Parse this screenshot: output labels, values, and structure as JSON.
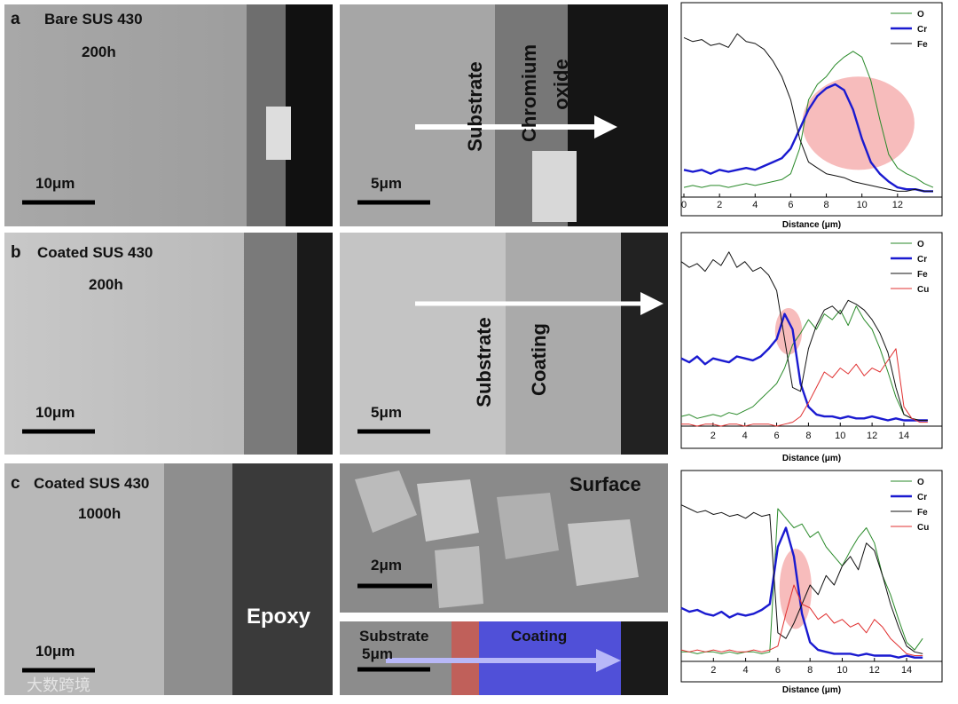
{
  "figure": [
    {
      "letter": "a",
      "sample": "Bare SUS 430",
      "time": "200h",
      "scale_bars": [
        "10μm",
        "5μm"
      ],
      "labels": [
        "Substrate",
        "Chromium",
        "oxide"
      ]
    },
    {
      "letter": "b",
      "sample": "Coated SUS 430",
      "time": "200h",
      "scale_bars": [
        "10μm",
        "5μm"
      ],
      "labels": [
        "Substrate",
        "Coating"
      ]
    },
    {
      "letter": "c",
      "sample": "Coated SUS 430",
      "time": "1000h",
      "scale_bars": [
        "10μm",
        "2μm",
        "5μm"
      ],
      "labels": [
        "Epoxy",
        "Surface",
        "Substrate",
        "Coating"
      ]
    }
  ],
  "watermark": "大数跨境",
  "chart_data": [
    {
      "type": "line",
      "x_label": "Distance (μm)",
      "legend": "upper right",
      "x": [
        0,
        0.5,
        1,
        1.5,
        2,
        2.5,
        3,
        3.5,
        4,
        4.5,
        5,
        5.5,
        6,
        6.5,
        7,
        7.5,
        8,
        8.5,
        9,
        9.5,
        10,
        10.5,
        11,
        11.5,
        12,
        12.5,
        13,
        13.5,
        14
      ],
      "xlim": [
        -0.15,
        14.5
      ],
      "xticks": [
        0,
        2,
        4,
        6,
        8,
        10,
        12
      ],
      "ylim": [
        0,
        100
      ],
      "highlight": {
        "x": [
          6.65,
          12.95
        ],
        "y": [
          14,
          62
        ],
        "color": "#f4a6a6"
      },
      "series": [
        {
          "name": "O",
          "color": "#2a8a2a",
          "values": [
            5,
            6,
            5,
            6,
            6,
            5,
            6,
            7,
            6,
            7,
            8,
            9,
            12,
            25,
            50,
            58,
            62,
            68,
            72,
            75,
            72,
            60,
            40,
            22,
            15,
            12,
            10,
            7,
            5
          ]
        },
        {
          "name": "Cr",
          "color": "#1a1ad0",
          "values": [
            14,
            13,
            14,
            12,
            14,
            13,
            14,
            15,
            14,
            16,
            18,
            20,
            25,
            35,
            45,
            52,
            56,
            58,
            55,
            45,
            30,
            18,
            12,
            8,
            5,
            4,
            4,
            3,
            3
          ]
        },
        {
          "name": "Fe",
          "color": "#111111",
          "values": [
            82,
            80,
            81,
            78,
            79,
            77,
            84,
            80,
            79,
            76,
            70,
            62,
            50,
            30,
            18,
            15,
            12,
            11,
            10,
            8,
            7,
            6,
            5,
            4,
            3,
            3,
            4,
            3,
            3
          ]
        }
      ]
    },
    {
      "type": "line",
      "x_label": "Distance (μm)",
      "legend": "upper right",
      "x": [
        0,
        0.5,
        1,
        1.5,
        2,
        2.5,
        3,
        3.5,
        4,
        4.5,
        5,
        5.5,
        6,
        6.5,
        7,
        7.5,
        8,
        8.5,
        9,
        9.5,
        10,
        10.5,
        11,
        11.5,
        12,
        12.5,
        13,
        13.5,
        14,
        14.5,
        15,
        15.5
      ],
      "xlim": [
        0,
        16.4
      ],
      "xticks": [
        2,
        4,
        6,
        8,
        10,
        12,
        14
      ],
      "ylim": [
        0,
        100
      ],
      "highlight": {
        "x": [
          5.9,
          7.6
        ],
        "y": [
          37,
          61
        ],
        "color": "#f4a6a6"
      },
      "series": [
        {
          "name": "O",
          "color": "#2a8a2a",
          "values": [
            5,
            6,
            4,
            5,
            6,
            5,
            7,
            6,
            8,
            10,
            14,
            18,
            22,
            30,
            42,
            48,
            55,
            50,
            58,
            55,
            60,
            52,
            62,
            55,
            50,
            40,
            28,
            15,
            6,
            4,
            3,
            3
          ]
        },
        {
          "name": "Cr",
          "color": "#1a1ad0",
          "values": [
            35,
            33,
            36,
            32,
            35,
            34,
            33,
            36,
            35,
            34,
            36,
            40,
            45,
            58,
            50,
            22,
            10,
            6,
            5,
            5,
            4,
            5,
            4,
            4,
            5,
            4,
            3,
            4,
            3,
            3,
            3,
            3
          ]
        },
        {
          "name": "Fe",
          "color": "#111111",
          "values": [
            85,
            82,
            84,
            80,
            86,
            83,
            90,
            82,
            85,
            80,
            82,
            78,
            70,
            45,
            20,
            18,
            40,
            52,
            60,
            62,
            58,
            65,
            63,
            60,
            55,
            48,
            38,
            20,
            6,
            4,
            3,
            3
          ]
        },
        {
          "name": "Cu",
          "color": "#e03030",
          "values": [
            1,
            1,
            0,
            1,
            1,
            0,
            1,
            1,
            0,
            1,
            1,
            1,
            0,
            1,
            2,
            5,
            12,
            20,
            28,
            25,
            30,
            27,
            32,
            26,
            30,
            28,
            34,
            40,
            10,
            4,
            2,
            2
          ]
        }
      ]
    },
    {
      "type": "line",
      "x_label": "Distance (μm)",
      "legend": "upper right",
      "x": [
        0,
        0.5,
        1,
        1.5,
        2,
        2.5,
        3,
        3.5,
        4,
        4.5,
        5,
        5.5,
        6,
        6.5,
        7,
        7.5,
        8,
        8.5,
        9,
        9.5,
        10,
        10.5,
        11,
        11.5,
        12,
        12.5,
        13,
        13.5,
        14,
        14.5,
        15
      ],
      "xlim": [
        0,
        16.2
      ],
      "xticks": [
        2,
        4,
        6,
        8,
        10,
        12,
        14
      ],
      "ylim": [
        0,
        100
      ],
      "highlight": {
        "x": [
          6.1,
          8.1
        ],
        "y": [
          17,
          59
        ],
        "color": "#f4a6a6"
      },
      "series": [
        {
          "name": "O",
          "color": "#2a8a2a",
          "values": [
            5,
            5,
            4,
            5,
            5,
            4,
            5,
            4,
            5,
            5,
            4,
            5,
            80,
            75,
            70,
            72,
            65,
            68,
            60,
            55,
            50,
            58,
            65,
            70,
            62,
            45,
            35,
            22,
            10,
            6,
            12
          ]
        },
        {
          "name": "Cr",
          "color": "#1a1ad0",
          "values": [
            28,
            26,
            27,
            25,
            24,
            26,
            23,
            25,
            24,
            25,
            27,
            30,
            60,
            70,
            55,
            25,
            10,
            6,
            5,
            4,
            4,
            4,
            3,
            4,
            3,
            3,
            3,
            2,
            3,
            2,
            2
          ]
        },
        {
          "name": "Fe",
          "color": "#111111",
          "values": [
            82,
            80,
            78,
            79,
            77,
            78,
            76,
            77,
            75,
            78,
            76,
            77,
            15,
            12,
            20,
            30,
            40,
            35,
            45,
            40,
            50,
            55,
            48,
            62,
            58,
            45,
            30,
            18,
            8,
            5,
            4
          ]
        },
        {
          "name": "Cu",
          "color": "#e03030",
          "values": [
            6,
            5,
            6,
            5,
            6,
            5,
            6,
            5,
            5,
            6,
            5,
            6,
            8,
            25,
            40,
            30,
            28,
            22,
            25,
            20,
            22,
            18,
            20,
            15,
            22,
            18,
            12,
            8,
            4,
            3,
            3
          ]
        }
      ]
    }
  ]
}
